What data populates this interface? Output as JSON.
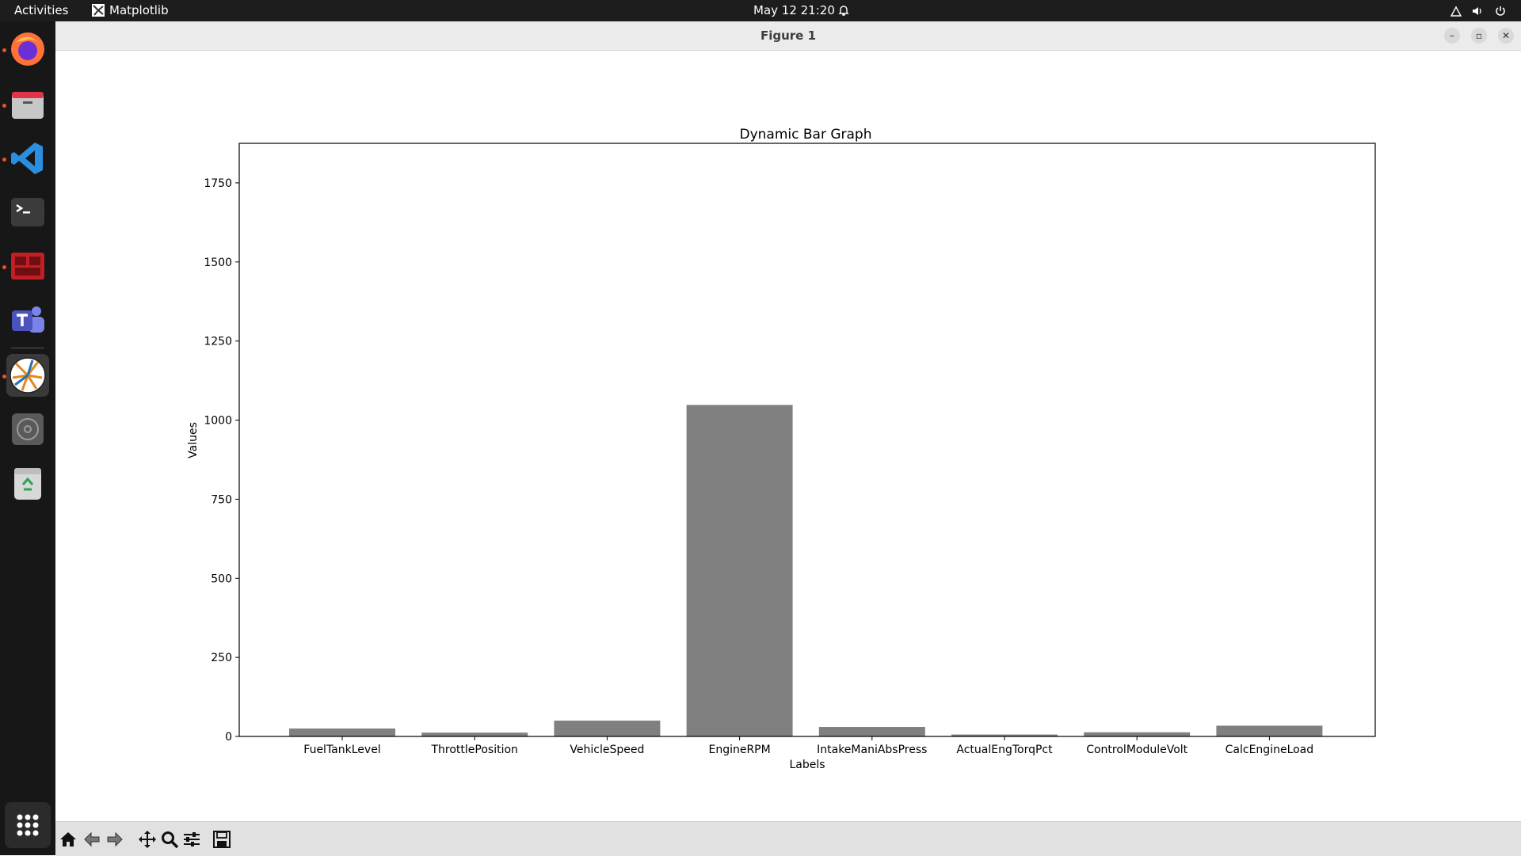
{
  "topbar": {
    "activities": "Activities",
    "app_name": "Matplotlib",
    "datetime": "May 12  21:20"
  },
  "window": {
    "title": "Figure 1"
  },
  "icons": {
    "dock": [
      "firefox-icon",
      "files-icon",
      "vscode-icon",
      "terminal-icon",
      "remote-desktop-icon",
      "teams-icon",
      "matplotlib-icon",
      "disc-icon",
      "trash-icon",
      "app-grid-icon"
    ],
    "toolbar": [
      "home-icon",
      "back-icon",
      "forward-icon",
      "pan-icon",
      "zoom-icon",
      "configure-subplots-icon",
      "save-icon"
    ]
  },
  "chart_data": {
    "type": "bar",
    "title": "Dynamic Bar Graph",
    "xlabel": "Labels",
    "ylabel": "Values",
    "categories": [
      "FuelTankLevel",
      "ThrottlePosition",
      "VehicleSpeed",
      "EngineRPM",
      "IntakeManiAbsPress",
      "ActualEngTorqPct",
      "ControlModuleVolt",
      "CalcEngineLoad"
    ],
    "values": [
      25,
      12,
      50,
      1048,
      30,
      6,
      13,
      34
    ],
    "ylim": [
      0,
      1875
    ],
    "yticks": [
      0,
      250,
      500,
      750,
      1000,
      1250,
      1500,
      1750
    ],
    "bar_color": "#808080",
    "grid": false
  }
}
